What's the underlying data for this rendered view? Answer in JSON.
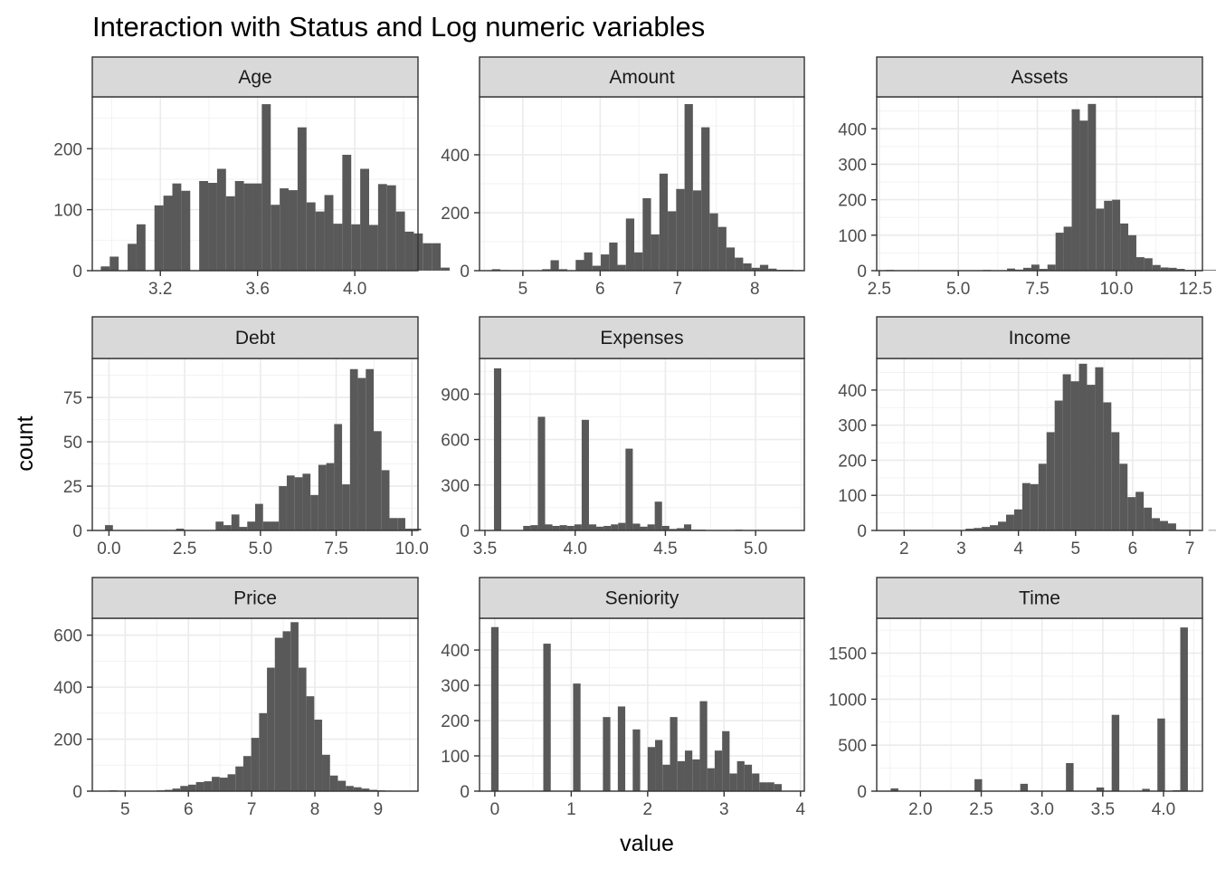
{
  "chart_data": {
    "type": "histogram-facet",
    "title": "Interaction with Status and Log numeric variables",
    "xlabel": "value",
    "ylabel": "count",
    "grid": true,
    "bar_color": "#595959",
    "strip_color": "#d9d9d9",
    "panels": [
      {
        "name": "Age",
        "xlim": [
          2.92,
          4.26
        ],
        "ylim": [
          0,
          285
        ],
        "x_ticks": [
          3.2,
          3.6,
          4.0
        ],
        "x_tick_labels": [
          "3.2",
          "3.6",
          "4.0"
        ],
        "y_ticks": [
          0,
          100,
          200
        ],
        "y_tick_labels": [
          "0",
          "100",
          "200"
        ],
        "bins": {
          "start": 2.955,
          "width": 0.0368,
          "counts": [
            7,
            23,
            0,
            44,
            76,
            0,
            107,
            123,
            143,
            131,
            0,
            147,
            144,
            167,
            122,
            147,
            143,
            143,
            273,
            108,
            135,
            132,
            235,
            112,
            97,
            124,
            77,
            190,
            76,
            167,
            75,
            142,
            140,
            97,
            64,
            61,
            45,
            45,
            5
          ]
        }
      },
      {
        "name": "Amount",
        "xlim": [
          4.44,
          8.64
        ],
        "ylim": [
          0,
          600
        ],
        "x_ticks": [
          5,
          6,
          7,
          8
        ],
        "x_tick_labels": [
          "5",
          "6",
          "7",
          "8"
        ],
        "y_ticks": [
          0,
          200,
          400
        ],
        "y_tick_labels": [
          "0",
          "200",
          "400"
        ],
        "bins": {
          "start": 4.6,
          "width": 0.1083,
          "counts": [
            5,
            2,
            0,
            0,
            0,
            0,
            5,
            36,
            5,
            0,
            37,
            63,
            17,
            56,
            97,
            20,
            180,
            63,
            250,
            125,
            335,
            205,
            282,
            575,
            277,
            495,
            198,
            151,
            80,
            45,
            25,
            10,
            20,
            7,
            3,
            3,
            2
          ]
        }
      },
      {
        "name": "Assets",
        "xlim": [
          2.42,
          12.72
        ],
        "ylim": [
          0,
          490
        ],
        "x_ticks": [
          2.5,
          5.0,
          7.5,
          10.0,
          12.5
        ],
        "x_tick_labels": [
          "2.5",
          "5.0",
          "7.5",
          "10.0",
          "12.5"
        ],
        "y_ticks": [
          0,
          100,
          200,
          300,
          400
        ],
        "y_tick_labels": [
          "0",
          "100",
          "200",
          "300",
          "400"
        ],
        "bins": {
          "start": 2.71,
          "width": 0.2555,
          "counts": [
            2,
            0,
            0,
            0,
            0,
            0,
            0,
            0,
            0,
            0,
            0,
            0,
            2,
            0,
            0,
            6,
            3,
            8,
            17,
            5,
            17,
            107,
            124,
            455,
            423,
            470,
            175,
            197,
            200,
            133,
            100,
            38,
            35,
            16,
            9,
            8,
            5,
            2,
            2,
            2,
            2
          ]
        }
      },
      {
        "name": "Debt",
        "xlim": [
          -0.55,
          10.2
        ],
        "ylim": [
          0,
          97
        ],
        "x_ticks": [
          0.0,
          2.5,
          5.0,
          7.5,
          10.0
        ],
        "x_tick_labels": [
          "0.0",
          "2.5",
          "5.0",
          "7.5",
          "10.0"
        ],
        "y_ticks": [
          0,
          25,
          50,
          75
        ],
        "y_tick_labels": [
          "0",
          "25",
          "50",
          "75"
        ],
        "bins": {
          "start": -0.13,
          "width": 0.2608,
          "counts": [
            3,
            0,
            0,
            0,
            0,
            0,
            0,
            0,
            0,
            1,
            0,
            0,
            0,
            0,
            5,
            3,
            9,
            2,
            5,
            15,
            5,
            5,
            25,
            31,
            30,
            32,
            20,
            37,
            38,
            60,
            26,
            91,
            86,
            91,
            56,
            34,
            7,
            7,
            1,
            1
          ]
        }
      },
      {
        "name": "Expenses",
        "xlim": [
          3.47,
          5.27
        ],
        "ylim": [
          0,
          1135
        ],
        "x_ticks": [
          3.5,
          4.0,
          4.5,
          5.0
        ],
        "x_tick_labels": [
          "3.5",
          "4.0",
          "4.5",
          "5.0"
        ],
        "y_ticks": [
          0,
          300,
          600,
          900
        ],
        "y_tick_labels": [
          "0",
          "300",
          "600",
          "900"
        ],
        "bins": {
          "start": 3.55,
          "width": 0.0405,
          "counts": [
            1070,
            0,
            3,
            0,
            30,
            35,
            750,
            40,
            30,
            35,
            30,
            40,
            730,
            40,
            25,
            30,
            40,
            50,
            540,
            45,
            25,
            40,
            190,
            30,
            10,
            15,
            40,
            5,
            5,
            0,
            3,
            0,
            0,
            5,
            0,
            0,
            0,
            0,
            0,
            0
          ]
        }
      },
      {
        "name": "Income",
        "xlim": [
          1.52,
          7.22
        ],
        "ylim": [
          0,
          490
        ],
        "x_ticks": [
          2,
          3,
          4,
          5,
          6,
          7
        ],
        "x_tick_labels": [
          "2",
          "3",
          "4",
          "5",
          "6",
          "7"
        ],
        "y_ticks": [
          0,
          100,
          200,
          300,
          400
        ],
        "y_tick_labels": [
          "0",
          "100",
          "200",
          "300",
          "400"
        ],
        "bins": {
          "start": 1.8,
          "width": 0.1417,
          "counts": [
            1,
            0,
            0,
            0,
            0,
            0,
            0,
            0,
            0,
            5,
            7,
            10,
            15,
            25,
            45,
            60,
            135,
            132,
            190,
            280,
            370,
            445,
            425,
            475,
            415,
            465,
            365,
            280,
            190,
            95,
            110,
            65,
            35,
            27,
            20,
            2,
            2,
            2,
            0,
            1
          ]
        }
      },
      {
        "name": "Price",
        "xlim": [
          4.48,
          9.63
        ],
        "ylim": [
          0,
          665
        ],
        "x_ticks": [
          5,
          6,
          7,
          8,
          9
        ],
        "x_tick_labels": [
          "5",
          "6",
          "7",
          "8",
          "9"
        ],
        "y_ticks": [
          0,
          200,
          400,
          600
        ],
        "y_tick_labels": [
          "0",
          "200",
          "400",
          "600"
        ],
        "bins": {
          "start": 4.75,
          "width": 0.1246,
          "counts": [
            3,
            0,
            0,
            0,
            0,
            0,
            3,
            5,
            10,
            20,
            25,
            35,
            38,
            55,
            52,
            65,
            95,
            135,
            205,
            300,
            475,
            590,
            615,
            650,
            475,
            365,
            275,
            140,
            60,
            40,
            20,
            15,
            10,
            5,
            3,
            2,
            1,
            0,
            0,
            0
          ]
        }
      },
      {
        "name": "Seniority",
        "xlim": [
          -0.2,
          4.05
        ],
        "ylim": [
          0,
          490
        ],
        "x_ticks": [
          0,
          1,
          2,
          3,
          4
        ],
        "x_tick_labels": [
          "0",
          "1",
          "2",
          "3",
          "4"
        ],
        "y_ticks": [
          0,
          100,
          200,
          300,
          400
        ],
        "y_tick_labels": [
          "0",
          "100",
          "200",
          "300",
          "400"
        ],
        "bins": {
          "start": -0.048,
          "width": 0.0975,
          "counts": [
            465,
            0,
            0,
            0,
            0,
            0,
            0,
            418,
            0,
            0,
            0,
            305,
            0,
            0,
            0,
            210,
            0,
            240,
            0,
            175,
            0,
            125,
            145,
            75,
            210,
            85,
            115,
            90,
            255,
            65,
            115,
            170,
            50,
            85,
            75,
            50,
            25,
            25,
            20,
            0
          ]
        }
      },
      {
        "name": "Time",
        "xlim": [
          1.64,
          4.32
        ],
        "ylim": [
          0,
          1880
        ],
        "x_ticks": [
          2.0,
          2.5,
          3.0,
          3.5,
          4.0
        ],
        "x_tick_labels": [
          "2.0",
          "2.5",
          "3.0",
          "3.5",
          "4.0"
        ],
        "y_ticks": [
          0,
          500,
          1000,
          1500
        ],
        "y_tick_labels": [
          "0",
          "500",
          "1000",
          "1500"
        ],
        "bins": {
          "start": 1.755,
          "width": 0.0627,
          "counts": [
            30,
            0,
            0,
            0,
            0,
            0,
            0,
            0,
            0,
            0,
            0,
            130,
            0,
            0,
            0,
            0,
            0,
            80,
            0,
            0,
            0,
            0,
            0,
            305,
            0,
            0,
            0,
            40,
            0,
            830,
            0,
            0,
            0,
            25,
            0,
            790,
            0,
            10,
            1780,
            0
          ]
        }
      }
    ]
  }
}
